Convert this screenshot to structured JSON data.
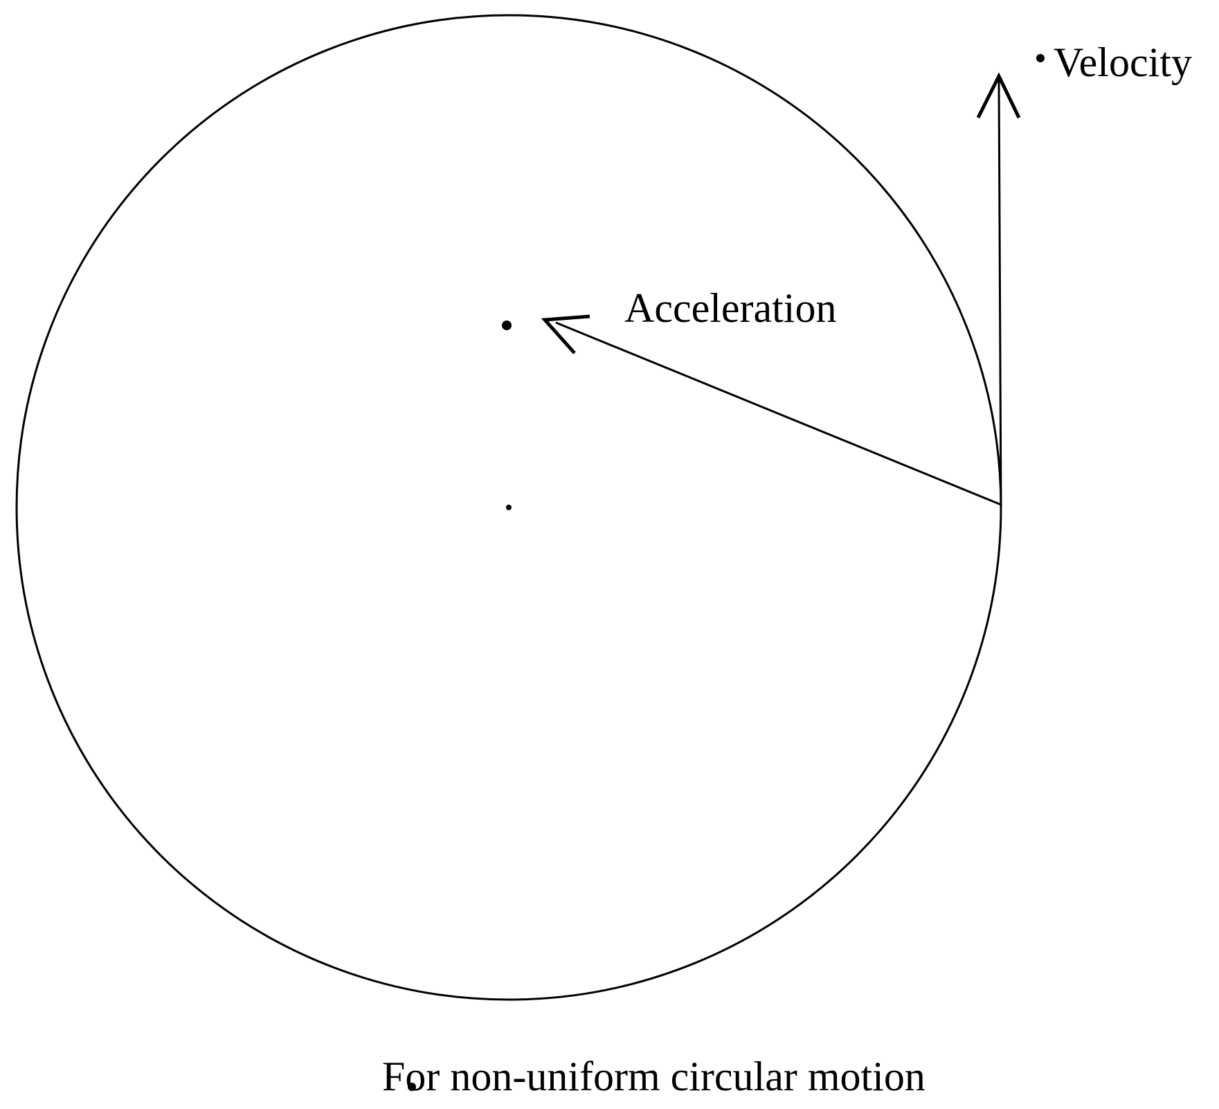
{
  "labels": {
    "velocity": "Velocity",
    "acceleration": "Acceleration",
    "caption": "For non-uniform circular motion"
  },
  "colors": {
    "stroke": "#000000",
    "background": "#ffffff"
  }
}
